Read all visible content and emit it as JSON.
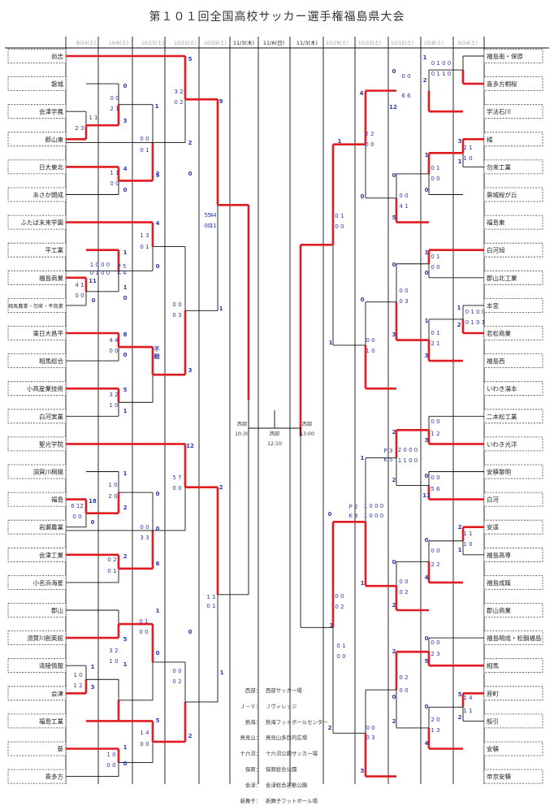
{
  "title": "第１０１回全国高校サッカー選手権福島県大会",
  "dates_left": [
    "9/24(土)",
    "10/8(土)",
    "10/15(土)",
    "10/22(土)",
    "10/29(土)"
  ],
  "dates_center": [
    "11/3(木)",
    "11/6(日)",
    "11/3(木)"
  ],
  "dates_right": [
    "10/29(土)",
    "10/22(土)",
    "10/15(土)",
    "10/8(土)",
    "9/24(土)"
  ],
  "teams_left": [
    "尚志",
    "磐城",
    "会津学鳳",
    "郡山東",
    "日大東北",
    "あさか開成",
    "ふたば未来学園",
    "平工業",
    "福島商業",
    "相馬農業・勿来・平商業",
    "東日大昌平",
    "相馬総合",
    "小高産業技術",
    "白河実業",
    "聖光学院",
    "須賀川桐陽",
    "福島",
    "岩瀬農業",
    "会津工業",
    "小名浜海星",
    "郡山",
    "須賀川創英館",
    "清陵情報",
    "会津",
    "福島工業",
    "葵",
    "喜多方"
  ],
  "teams_right": [
    "福島南・保原",
    "喜多方桐桜",
    "学法石川",
    "橘",
    "勿来工業",
    "磐城桜が丘",
    "福島東",
    "白河旭",
    "郡山北工業",
    "本宮",
    "若松商業",
    "福島西",
    "いわき湯本",
    "二本松工業",
    "いわき光洋",
    "安積黎明",
    "白河",
    "安達",
    "福島高専",
    "福島成蹊",
    "郡山商業",
    "福島明成・松韻福島",
    "相馬",
    "原町",
    "船引",
    "安積",
    "帝京安積"
  ],
  "final": {
    "west_a": "西部",
    "time_a": "10:30",
    "west_b": "西部",
    "time_b": "12:10",
    "west_c": "西部",
    "time_c": "13:00"
  },
  "legend": [
    {
      "k": "西部：",
      "v": "西部サッカー場"
    },
    {
      "k": "Ｊ－Ｖ：",
      "v": "Ｊヴィレッジ"
    },
    {
      "k": "熱海：",
      "v": "熱海フットボールセンター"
    },
    {
      "k": "鳥見山：",
      "v": "鳥見山多目的広場"
    },
    {
      "k": "十六沼：",
      "v": "十六沼公園サッカー場"
    },
    {
      "k": "保原：",
      "v": "保原総合公園"
    },
    {
      "k": "会津：",
      "v": "会津総合運動公園"
    },
    {
      "k": "新舞子：",
      "v": "新舞子フットボール場"
    }
  ],
  "scores_left": [
    {
      "t": "5",
      "c": "blueb"
    },
    {
      "t": "3 2",
      "c": "blue"
    },
    {
      "t": "0 2",
      "c": "blue"
    },
    {
      "t": "9",
      "c": "blueb"
    },
    {
      "t": "0",
      "c": "blueb"
    },
    {
      "t": "0 0",
      "c": "blue"
    },
    {
      "t": "2 1",
      "c": "blue"
    },
    {
      "t": "3",
      "c": "blueb"
    },
    {
      "t": "2",
      "c": "blueb"
    },
    {
      "t": "0",
      "c": "blueb"
    },
    {
      "t": "0 0",
      "c": "blue"
    },
    {
      "t": "0 1",
      "c": "blue"
    },
    {
      "t": "1",
      "c": "blueb"
    },
    {
      "t": "2",
      "c": "blueb"
    },
    {
      "t": "1 1",
      "c": "blue"
    },
    {
      "t": "2 3",
      "c": "blue"
    },
    {
      "t": "4",
      "c": "blueb"
    },
    {
      "t": "1 1",
      "c": "blue"
    },
    {
      "t": "0 0",
      "c": "blue"
    },
    {
      "t": "0",
      "c": "blueb"
    },
    {
      "t": "5",
      "c": "blueb"
    },
    {
      "t": "5 4",
      "c": "blue"
    },
    {
      "t": "0 1",
      "c": "blue"
    },
    {
      "t": "4",
      "c": "blueb"
    },
    {
      "t": "1 3",
      "c": "blue"
    },
    {
      "t": "0 1",
      "c": "blue"
    },
    {
      "t": "0",
      "c": "blueb"
    },
    {
      "t": "1",
      "c": "blueb"
    },
    {
      "t": "1 0 0 0",
      "c": "blue"
    },
    {
      "t": "0 1 0 0",
      "c": "blue"
    },
    {
      "t": "P 5",
      "c": "blue"
    },
    {
      "t": "K 4",
      "c": "blue"
    },
    {
      "t": "0",
      "c": "blueb"
    },
    {
      "t": "11",
      "c": "blueb"
    },
    {
      "t": "4 1",
      "c": "blue"
    },
    {
      "t": "0 0",
      "c": "blue"
    },
    {
      "t": "0",
      "c": "blueb"
    },
    {
      "t": "1",
      "c": "blueb"
    },
    {
      "t": "0 0",
      "c": "blue"
    },
    {
      "t": "0 3",
      "c": "blue"
    },
    {
      "t": "1",
      "c": "blueb"
    },
    {
      "t": "8",
      "c": "blueb"
    },
    {
      "t": "4 4",
      "c": "blue"
    },
    {
      "t": "0 0",
      "c": "blue"
    },
    {
      "t": "0",
      "c": "blueb"
    },
    {
      "t": "不",
      "c": "blueb"
    },
    {
      "t": "戦",
      "c": "blueb"
    },
    {
      "t": "3",
      "c": "blueb"
    },
    {
      "t": "5",
      "c": "blueb"
    },
    {
      "t": "3 2",
      "c": "blue"
    },
    {
      "t": "1 0",
      "c": "blue"
    },
    {
      "t": "1",
      "c": "blueb"
    },
    {
      "t": "12",
      "c": "blueb"
    },
    {
      "t": "5 7",
      "c": "blue"
    },
    {
      "t": "0 0",
      "c": "blue"
    },
    {
      "t": "2",
      "c": "blueb"
    },
    {
      "t": "1",
      "c": "blueb"
    },
    {
      "t": "1 0",
      "c": "blue"
    },
    {
      "t": "2 0",
      "c": "blue"
    },
    {
      "t": "2",
      "c": "blueb"
    },
    {
      "t": "18",
      "c": "blueb"
    },
    {
      "t": "6 12",
      "c": "blue"
    },
    {
      "t": "0  0",
      "c": "blue"
    },
    {
      "t": "0",
      "c": "blueb"
    },
    {
      "t": "0",
      "c": "blueb"
    },
    {
      "t": "0 0",
      "c": "blue"
    },
    {
      "t": "3 3",
      "c": "blue"
    },
    {
      "t": "0",
      "c": "blueb"
    },
    {
      "t": "2",
      "c": "blueb"
    },
    {
      "t": "0 2",
      "c": "blue"
    },
    {
      "t": "0 1",
      "c": "blue"
    },
    {
      "t": "6",
      "c": "blueb"
    },
    {
      "t": "1 1",
      "c": "blue"
    },
    {
      "t": "0 1",
      "c": "blue"
    },
    {
      "t": "1",
      "c": "blueb"
    },
    {
      "t": "0 1",
      "c": "blue"
    },
    {
      "t": "0 0",
      "c": "blue"
    },
    {
      "t": "0",
      "c": "blueb"
    },
    {
      "t": "5",
      "c": "blueb"
    },
    {
      "t": "3 2",
      "c": "blue"
    },
    {
      "t": "1 0",
      "c": "blue"
    },
    {
      "t": "1",
      "c": "blueb"
    },
    {
      "t": "1",
      "c": "blueb"
    },
    {
      "t": "1 0",
      "c": "blue"
    },
    {
      "t": "1 2",
      "c": "blue"
    },
    {
      "t": "3",
      "c": "blueb"
    },
    {
      "t": "0",
      "c": "blueb"
    },
    {
      "t": "0 0",
      "c": "blue"
    },
    {
      "t": "0 2",
      "c": "blue"
    },
    {
      "t": "1",
      "c": "blueb"
    },
    {
      "t": "5",
      "c": "blueb"
    },
    {
      "t": "1 4",
      "c": "blue"
    },
    {
      "t": "0 0",
      "c": "blue"
    },
    {
      "t": "2",
      "c": "blueb"
    },
    {
      "t": "1",
      "c": "blueb"
    },
    {
      "t": "1 0",
      "c": "blue"
    },
    {
      "t": "0 0",
      "c": "blue"
    },
    {
      "t": "0",
      "c": "blueb"
    },
    {
      "t": "5 4",
      "c": "blue"
    },
    {
      "t": "0 1",
      "c": "blue"
    }
  ],
  "scores_right": [
    {
      "t": "1",
      "c": "blueb"
    },
    {
      "t": "0 1 0 0",
      "c": "blue"
    },
    {
      "t": "0 1 1 0",
      "c": "blue"
    },
    {
      "t": "2",
      "c": "blueb"
    },
    {
      "t": "0",
      "c": "blueb"
    },
    {
      "t": "0 0",
      "c": "blue"
    },
    {
      "t": "6 6",
      "c": "blue"
    },
    {
      "t": "12",
      "c": "blueb"
    },
    {
      "t": "4",
      "c": "blueb"
    },
    {
      "t": "2 2",
      "c": "blue"
    },
    {
      "t": "0 0",
      "c": "blue"
    },
    {
      "t": "0",
      "c": "blueb"
    },
    {
      "t": "3",
      "c": "blueb"
    },
    {
      "t": "2 1",
      "c": "blue"
    },
    {
      "t": "1 0",
      "c": "blue"
    },
    {
      "t": "1",
      "c": "blueb"
    },
    {
      "t": "1",
      "c": "blueb"
    },
    {
      "t": "0 1",
      "c": "blue"
    },
    {
      "t": "0 0",
      "c": "blue"
    },
    {
      "t": "0",
      "c": "blueb"
    },
    {
      "t": "0",
      "c": "blueb"
    },
    {
      "t": "0 0",
      "c": "blue"
    },
    {
      "t": "4 1",
      "c": "blue"
    },
    {
      "t": "5",
      "c": "blueb"
    },
    {
      "t": "1",
      "c": "blueb"
    },
    {
      "t": "0 1",
      "c": "blue"
    },
    {
      "t": "0 0",
      "c": "blue"
    },
    {
      "t": "1",
      "c": "blueb"
    },
    {
      "t": "0 1",
      "c": "blue"
    },
    {
      "t": "0 0",
      "c": "blue"
    },
    {
      "t": "0",
      "c": "blueb"
    },
    {
      "t": "0",
      "c": "blueb"
    },
    {
      "t": "0 0",
      "c": "blue"
    },
    {
      "t": "0 3",
      "c": "blue"
    },
    {
      "t": "3",
      "c": "blueb"
    },
    {
      "t": "1",
      "c": "blueb"
    },
    {
      "t": "0 1 0 0",
      "c": "blue"
    },
    {
      "t": "0 1 0 1",
      "c": "blue"
    },
    {
      "t": "2",
      "c": "blueb"
    },
    {
      "t": "1",
      "c": "blueb"
    },
    {
      "t": "0 1",
      "c": "blue"
    },
    {
      "t": "2 1",
      "c": "blue"
    },
    {
      "t": "3",
      "c": "blueb"
    },
    {
      "t": "0",
      "c": "blueb"
    },
    {
      "t": "0 0",
      "c": "blue"
    },
    {
      "t": "1 0",
      "c": "blue"
    },
    {
      "t": "1",
      "c": "blueb"
    },
    {
      "t": "2",
      "c": "blueb"
    },
    {
      "t": "0 0",
      "c": "blue"
    },
    {
      "t": "1 2",
      "c": "blue"
    },
    {
      "t": "3",
      "c": "blueb"
    },
    {
      "t": "1",
      "c": "blueb"
    },
    {
      "t": "P 3",
      "c": "blue"
    },
    {
      "t": "K 5",
      "c": "blue"
    },
    {
      "t": "2 0 0 0",
      "c": "blue"
    },
    {
      "t": "1 1 0 0",
      "c": "blue"
    },
    {
      "t": "2",
      "c": "blueb"
    },
    {
      "t": "0",
      "c": "blueb"
    },
    {
      "t": "0 0",
      "c": "blue"
    },
    {
      "t": "5 6",
      "c": "blue"
    },
    {
      "t": "11",
      "c": "blueb"
    },
    {
      "t": "0",
      "c": "blueb"
    },
    {
      "t": "P 2",
      "c": "blue"
    },
    {
      "t": "K 3",
      "c": "blue"
    },
    {
      "t": "1 0 0 0",
      "c": "blue"
    },
    {
      "t": "1 0 0 0",
      "c": "blue"
    },
    {
      "t": "1",
      "c": "blueb"
    },
    {
      "t": "2",
      "c": "blueb"
    },
    {
      "t": "1 1",
      "c": "blue"
    },
    {
      "t": "1 0",
      "c": "blue"
    },
    {
      "t": "1",
      "c": "blueb"
    },
    {
      "t": "0",
      "c": "blueb"
    },
    {
      "t": "0 0",
      "c": "blue"
    },
    {
      "t": "2 2",
      "c": "blue"
    },
    {
      "t": "4",
      "c": "blueb"
    },
    {
      "t": "0",
      "c": "blueb"
    },
    {
      "t": "0 0",
      "c": "blue"
    },
    {
      "t": "0 2",
      "c": "blue"
    },
    {
      "t": "2",
      "c": "blueb"
    },
    {
      "t": "0",
      "c": "blueb"
    },
    {
      "t": "0 0",
      "c": "blue"
    },
    {
      "t": "2 3",
      "c": "blue"
    },
    {
      "t": "5",
      "c": "blueb"
    },
    {
      "t": "2",
      "c": "blueb"
    },
    {
      "t": "0 2",
      "c": "blue"
    },
    {
      "t": "0 0",
      "c": "blue"
    },
    {
      "t": "0",
      "c": "blueb"
    },
    {
      "t": "5",
      "c": "blueb"
    },
    {
      "t": "1 4",
      "c": "blue"
    },
    {
      "t": "1 1",
      "c": "blue"
    },
    {
      "t": "2",
      "c": "blueb"
    },
    {
      "t": "0",
      "c": "blueb"
    },
    {
      "t": "2 0",
      "c": "blue"
    },
    {
      "t": "1 3",
      "c": "blue"
    },
    {
      "t": "4",
      "c": "blueb"
    },
    {
      "t": "2",
      "c": "blueb"
    },
    {
      "t": "0 0",
      "c": "blue"
    },
    {
      "t": "0 3",
      "c": "blue"
    },
    {
      "t": "3",
      "c": "blueb"
    },
    {
      "t": "1",
      "c": "blueb"
    },
    {
      "t": "0 1",
      "c": "blue"
    },
    {
      "t": "0 0",
      "c": "blue"
    },
    {
      "t": "2",
      "c": "blueb"
    },
    {
      "t": "0 0",
      "c": "blue"
    },
    {
      "t": "0 2",
      "c": "blue"
    }
  ],
  "colors": {
    "win": "#e11b22",
    "line": "#111111",
    "score": "#2b3ab0",
    "header": "#9a9a9a"
  }
}
